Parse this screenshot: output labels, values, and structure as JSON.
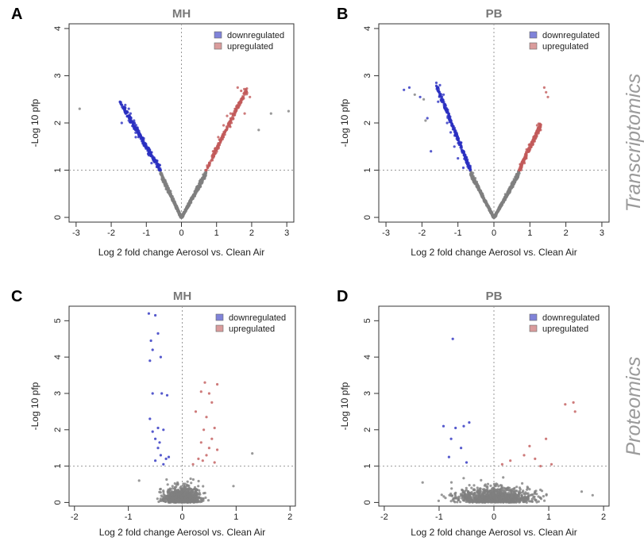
{
  "side_labels": {
    "top": "Transcriptomics",
    "bottom": "Proteomics"
  },
  "chart_data": [
    {
      "type": "scatter",
      "panel": "A",
      "title": "MH",
      "xlabel": "Log 2 fold change Aerosol vs. Clean Air",
      "ylabel": "-Log 10 pfp",
      "xlim": [
        -3.2,
        3.2
      ],
      "ylim": [
        -0.1,
        4.1
      ],
      "xticks": [
        -3,
        -2,
        -1,
        0,
        1,
        2,
        3
      ],
      "yticks": [
        0,
        1,
        2,
        3,
        4
      ],
      "reference_lines": {
        "x": 0,
        "y": 1
      },
      "legend": {
        "position": "top-right",
        "entries": [
          "downregulated",
          "upregulated"
        ]
      },
      "colors": {
        "downregulated": "#2b30c0",
        "upregulated": "#c25a5a",
        "not_significant": "#7f7f7f"
      },
      "highlight_points": {
        "downregulated": [
          [
            -1.75,
            2.45
          ],
          [
            -1.6,
            2.38
          ],
          [
            -1.5,
            2.3
          ],
          [
            -1.45,
            2.2
          ],
          [
            -1.35,
            2.05
          ],
          [
            -1.25,
            1.9
          ],
          [
            -1.1,
            1.6
          ],
          [
            -0.95,
            1.35
          ],
          [
            -0.85,
            1.15
          ],
          [
            -1.5,
            2.05
          ],
          [
            -1.3,
            1.7
          ],
          [
            -1.7,
            2.0
          ]
        ],
        "upregulated": [
          [
            1.6,
            2.75
          ],
          [
            1.7,
            2.68
          ],
          [
            1.8,
            2.6
          ],
          [
            1.95,
            2.55
          ],
          [
            1.4,
            2.2
          ],
          [
            1.2,
            1.95
          ],
          [
            1.05,
            1.7
          ],
          [
            0.9,
            1.4
          ],
          [
            0.8,
            1.15
          ],
          [
            1.55,
            2.3
          ],
          [
            1.3,
            2.15
          ],
          [
            1.8,
            2.2
          ]
        ],
        "not_significant": [
          [
            -2.9,
            2.3
          ],
          [
            2.55,
            2.2
          ],
          [
            3.05,
            2.25
          ],
          [
            2.2,
            1.85
          ]
        ]
      },
      "point_cloud": {
        "down_branch": {
          "x": [
            -1.75,
            -0.6
          ],
          "y_at_end": [
            2.45,
            1.0
          ]
        },
        "up_branch": {
          "x": [
            0.7,
            1.85
          ],
          "y_at_end": [
            1.0,
            2.7
          ]
        }
      }
    },
    {
      "type": "scatter",
      "panel": "B",
      "title": "PB",
      "xlabel": "Log 2 fold change Aerosol vs. Clean Air",
      "ylabel": "-Log 10 pfp",
      "xlim": [
        -3.2,
        3.2
      ],
      "ylim": [
        -0.1,
        4.1
      ],
      "xticks": [
        -3,
        -2,
        -1,
        0,
        1,
        2,
        3
      ],
      "yticks": [
        0,
        1,
        2,
        3,
        4
      ],
      "reference_lines": {
        "x": 0,
        "y": 1
      },
      "legend": {
        "position": "top-right",
        "entries": [
          "downregulated",
          "upregulated"
        ]
      },
      "colors": {
        "downregulated": "#2b30c0",
        "upregulated": "#c25a5a",
        "not_significant": "#7f7f7f"
      },
      "highlight_points": {
        "downregulated": [
          [
            -2.5,
            2.7
          ],
          [
            -2.35,
            2.75
          ],
          [
            -2.05,
            2.55
          ],
          [
            -1.6,
            2.85
          ],
          [
            -1.5,
            2.8
          ],
          [
            -1.4,
            2.6
          ],
          [
            -1.35,
            2.3
          ],
          [
            -1.3,
            2.0
          ],
          [
            -1.2,
            1.8
          ],
          [
            -1.1,
            1.5
          ],
          [
            -1.0,
            1.25
          ],
          [
            -0.85,
            1.05
          ],
          [
            -1.55,
            2.45
          ],
          [
            -1.85,
            2.1
          ],
          [
            -1.75,
            1.4
          ]
        ],
        "upregulated": [
          [
            1.4,
            2.75
          ],
          [
            1.5,
            2.55
          ],
          [
            1.45,
            2.65
          ],
          [
            1.2,
            1.95
          ],
          [
            1.1,
            1.7
          ],
          [
            0.95,
            1.4
          ],
          [
            0.85,
            1.15
          ],
          [
            0.75,
            1.0
          ],
          [
            1.3,
            1.85
          ]
        ],
        "not_significant": [
          [
            -2.2,
            2.6
          ],
          [
            -1.95,
            2.5
          ],
          [
            -1.9,
            2.05
          ]
        ]
      },
      "point_cloud": {
        "down_branch": {
          "x": [
            -1.6,
            -0.65
          ],
          "y_at_end": [
            2.8,
            1.0
          ]
        },
        "up_branch": {
          "x": [
            0.7,
            1.3
          ],
          "y_at_end": [
            1.0,
            1.95
          ]
        }
      }
    },
    {
      "type": "scatter",
      "panel": "C",
      "title": "MH",
      "xlabel": "Log 2 fold change Aerosol vs. Clean Air",
      "ylabel": "-Log 10 pfp",
      "xlim": [
        -2.1,
        2.1
      ],
      "ylim": [
        -0.1,
        5.4
      ],
      "xticks": [
        -2,
        -1,
        0,
        1,
        2
      ],
      "yticks": [
        0,
        1,
        2,
        3,
        4,
        5
      ],
      "reference_lines": {
        "x": 0,
        "y": 1
      },
      "legend": {
        "position": "top-right",
        "entries": [
          "downregulated",
          "upregulated"
        ]
      },
      "colors": {
        "downregulated": "#2b30c0",
        "upregulated": "#c25a5a",
        "not_significant": "#7f7f7f"
      },
      "highlight_points": {
        "downregulated": [
          [
            -0.62,
            5.2
          ],
          [
            -0.5,
            5.15
          ],
          [
            -0.45,
            4.65
          ],
          [
            -0.58,
            4.45
          ],
          [
            -0.55,
            4.2
          ],
          [
            -0.4,
            4.0
          ],
          [
            -0.6,
            3.9
          ],
          [
            -0.55,
            3.0
          ],
          [
            -0.38,
            3.0
          ],
          [
            -0.28,
            2.95
          ],
          [
            -0.6,
            2.3
          ],
          [
            -0.45,
            2.05
          ],
          [
            -0.35,
            2.0
          ],
          [
            -0.55,
            1.95
          ],
          [
            -0.5,
            1.75
          ],
          [
            -0.45,
            1.5
          ],
          [
            -0.4,
            1.3
          ],
          [
            -0.3,
            1.2
          ],
          [
            -0.5,
            1.15
          ],
          [
            -0.35,
            1.05
          ],
          [
            -0.25,
            1.25
          ],
          [
            -0.42,
            1.65
          ]
        ],
        "upregulated": [
          [
            0.42,
            3.3
          ],
          [
            0.35,
            3.05
          ],
          [
            0.5,
            3.0
          ],
          [
            0.65,
            3.25
          ],
          [
            0.55,
            2.75
          ],
          [
            0.25,
            2.5
          ],
          [
            0.45,
            2.35
          ],
          [
            0.4,
            2.0
          ],
          [
            0.6,
            2.05
          ],
          [
            0.55,
            1.75
          ],
          [
            0.35,
            1.65
          ],
          [
            0.5,
            1.5
          ],
          [
            0.45,
            1.3
          ],
          [
            0.3,
            1.2
          ],
          [
            0.6,
            1.1
          ],
          [
            0.2,
            1.05
          ],
          [
            0.38,
            1.15
          ],
          [
            0.65,
            1.45
          ]
        ],
        "not_significant": [
          [
            1.3,
            1.35
          ],
          [
            -0.8,
            0.6
          ],
          [
            0.95,
            0.45
          ]
        ]
      },
      "point_cloud": {
        "x_spread": 0.75,
        "y_max": 0.95
      }
    },
    {
      "type": "scatter",
      "panel": "D",
      "title": "PB",
      "xlabel": "Log 2 fold change Aerosol vs. Clean Air",
      "ylabel": "-Log 10 pfp",
      "xlim": [
        -2.1,
        2.1
      ],
      "ylim": [
        -0.1,
        5.4
      ],
      "xticks": [
        -2,
        -1,
        0,
        1,
        2
      ],
      "yticks": [
        0,
        1,
        2,
        3,
        4,
        5
      ],
      "reference_lines": {
        "x": 0,
        "y": 1
      },
      "legend": {
        "position": "top-right",
        "entries": [
          "downregulated",
          "upregulated"
        ]
      },
      "colors": {
        "downregulated": "#2b30c0",
        "upregulated": "#c25a5a",
        "not_significant": "#7f7f7f"
      },
      "highlight_points": {
        "downregulated": [
          [
            -0.75,
            4.5
          ],
          [
            -0.92,
            2.1
          ],
          [
            -0.7,
            2.05
          ],
          [
            -0.55,
            2.1
          ],
          [
            -0.45,
            2.2
          ],
          [
            -0.78,
            1.75
          ],
          [
            -0.6,
            1.5
          ],
          [
            -0.82,
            1.25
          ],
          [
            -0.5,
            1.1
          ]
        ],
        "upregulated": [
          [
            1.45,
            2.75
          ],
          [
            1.3,
            2.7
          ],
          [
            1.48,
            2.5
          ],
          [
            0.95,
            1.75
          ],
          [
            0.65,
            1.55
          ],
          [
            0.55,
            1.3
          ],
          [
            0.75,
            1.2
          ],
          [
            0.3,
            1.15
          ],
          [
            1.05,
            1.05
          ],
          [
            0.15,
            1.05
          ],
          [
            0.85,
            1.0
          ]
        ],
        "not_significant": [
          [
            -1.3,
            0.55
          ],
          [
            1.8,
            0.2
          ],
          [
            1.6,
            0.3
          ]
        ]
      },
      "point_cloud": {
        "x_spread": 1.6,
        "y_max": 1.0
      }
    }
  ]
}
